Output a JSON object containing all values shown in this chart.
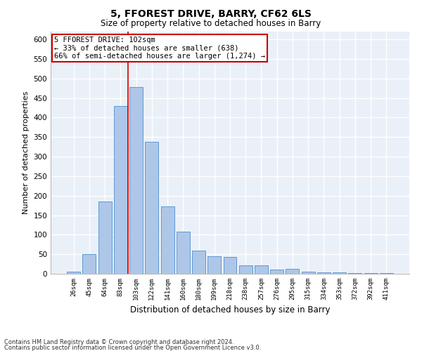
{
  "title1": "5, FFOREST DRIVE, BARRY, CF62 6LS",
  "title2": "Size of property relative to detached houses in Barry",
  "xlabel": "Distribution of detached houses by size in Barry",
  "ylabel": "Number of detached properties",
  "categories": [
    "26sqm",
    "45sqm",
    "64sqm",
    "83sqm",
    "103sqm",
    "122sqm",
    "141sqm",
    "160sqm",
    "180sqm",
    "199sqm",
    "218sqm",
    "238sqm",
    "257sqm",
    "276sqm",
    "295sqm",
    "315sqm",
    "334sqm",
    "353sqm",
    "372sqm",
    "392sqm",
    "411sqm"
  ],
  "values": [
    5,
    50,
    185,
    430,
    478,
    338,
    173,
    107,
    60,
    45,
    43,
    22,
    22,
    10,
    12,
    5,
    4,
    4,
    1,
    2,
    2
  ],
  "bar_color": "#aec6e8",
  "bar_edge_color": "#5b9bd5",
  "bg_color": "#eaf0f8",
  "grid_color": "#ffffff",
  "vline_x_index": 4,
  "vline_color": "#cc0000",
  "annotation_text": "5 FFOREST DRIVE: 102sqm\n← 33% of detached houses are smaller (638)\n66% of semi-detached houses are larger (1,274) →",
  "annotation_box_color": "#ffffff",
  "annotation_box_edge_color": "#cc0000",
  "footer1": "Contains HM Land Registry data © Crown copyright and database right 2024.",
  "footer2": "Contains public sector information licensed under the Open Government Licence v3.0.",
  "ylim": [
    0,
    620
  ],
  "yticks": [
    0,
    50,
    100,
    150,
    200,
    250,
    300,
    350,
    400,
    450,
    500,
    550,
    600
  ]
}
